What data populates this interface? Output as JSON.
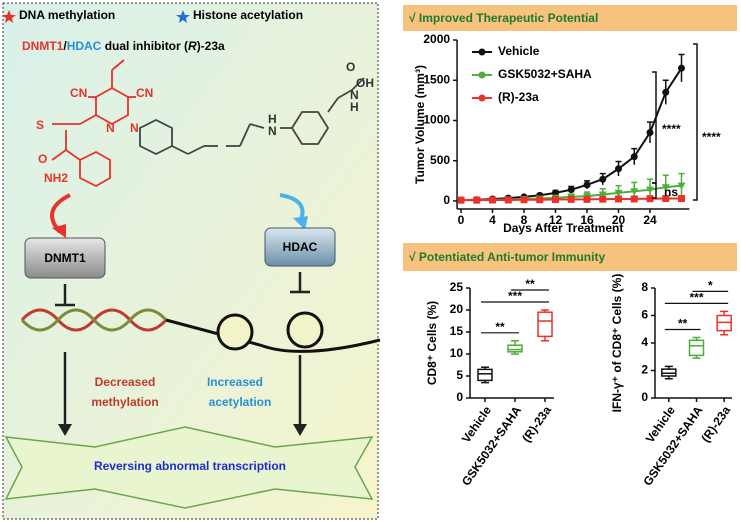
{
  "legend": {
    "methylation": "DNA methylation",
    "acetylation": "Histone acetylation"
  },
  "inhibitor_title": [
    "DNMT1",
    "/",
    "HDAC",
    " dual inhibitor (",
    "R",
    ")-23a"
  ],
  "molecule_labels": [
    "CN",
    "CN",
    "S",
    "N",
    "N",
    "O",
    "NH2",
    "H",
    "N",
    "O",
    "N",
    "H",
    "OH"
  ],
  "nodes": {
    "dnmt1": "DNMT1",
    "hdac": "HDAC",
    "decreased": "Decreased",
    "methylation": "methylation",
    "increased": "Increased",
    "acetylation": "acetylation",
    "outcome": "Reversing abnormal transcription"
  },
  "chart_data": [
    {
      "type": "line",
      "title": "√ Improved Therapeutic Potential",
      "x_label": "Days After Treatment",
      "y_label": "Tumor Volume (mm³)",
      "x": [
        0,
        2,
        4,
        6,
        8,
        10,
        12,
        14,
        16,
        18,
        20,
        22,
        24,
        26,
        28
      ],
      "xlim": [
        -0.5,
        29
      ],
      "xticks": [
        0,
        4,
        8,
        12,
        16,
        20,
        24
      ],
      "ylim": [
        -100,
        2000
      ],
      "yticks": [
        0,
        500,
        1000,
        1500,
        2000
      ],
      "series": [
        {
          "name": "Vehicle",
          "color": "#111111",
          "marker": "circle",
          "values": [
            10,
            15,
            25,
            35,
            50,
            70,
            100,
            140,
            200,
            270,
            400,
            550,
            850,
            1350,
            1650
          ],
          "errors": [
            5,
            8,
            10,
            12,
            15,
            20,
            30,
            40,
            50,
            70,
            90,
            100,
            130,
            150,
            170
          ]
        },
        {
          "name": "GSK5032+SAHA",
          "color": "#4caf3a",
          "marker": "triangle",
          "values": [
            10,
            12,
            15,
            20,
            25,
            30,
            40,
            50,
            60,
            80,
            100,
            120,
            140,
            170,
            190
          ],
          "errors": [
            5,
            6,
            8,
            10,
            12,
            15,
            25,
            35,
            50,
            70,
            90,
            110,
            130,
            150,
            150
          ]
        },
        {
          "name": "(R)-23a",
          "color": "#e8322a",
          "marker": "square",
          "values": [
            10,
            10,
            12,
            12,
            15,
            15,
            18,
            20,
            20,
            22,
            25,
            25,
            28,
            30,
            30
          ],
          "errors": [
            3,
            3,
            4,
            4,
            5,
            5,
            6,
            6,
            7,
            8,
            8,
            9,
            9,
            10,
            10
          ]
        }
      ],
      "annotations": [
        "****",
        "****",
        "ns"
      ]
    },
    {
      "type": "box",
      "title": "√ Potentiated Anti-tumor Immunity",
      "y_label": "CD8⁺ Cells (%)",
      "categories": [
        "Vehicle",
        "GSK5032+SAHA",
        "(R)-23a"
      ],
      "colors": [
        "#111111",
        "#4caf3a",
        "#e8322a"
      ],
      "min": [
        3.5,
        10,
        13
      ],
      "q1": [
        4,
        10.5,
        14
      ],
      "median": [
        5.5,
        11,
        17.5
      ],
      "q3": [
        6.5,
        12,
        19.5
      ],
      "max": [
        7,
        13,
        20
      ],
      "ylim": [
        0,
        25
      ],
      "yticks": [
        0,
        5,
        10,
        15,
        20,
        25
      ],
      "comparisons": [
        "**",
        "***",
        "**"
      ]
    },
    {
      "type": "box",
      "y_label": "IFN-γ⁺ of CD8⁺ Cells (%)",
      "categories": [
        "Vehicle",
        "GSK5032+SAHA",
        "(R)-23a"
      ],
      "colors": [
        "#111111",
        "#4caf3a",
        "#e8322a"
      ],
      "min": [
        1.4,
        2.9,
        4.6
      ],
      "q1": [
        1.6,
        3.1,
        4.9
      ],
      "median": [
        1.8,
        3.8,
        5.5
      ],
      "q3": [
        2.1,
        4.2,
        6.0
      ],
      "max": [
        2.3,
        4.4,
        6.3
      ],
      "ylim": [
        0,
        8
      ],
      "yticks": [
        0,
        2,
        4,
        6,
        8
      ],
      "comparisons": [
        "**",
        "***",
        "*"
      ]
    }
  ]
}
